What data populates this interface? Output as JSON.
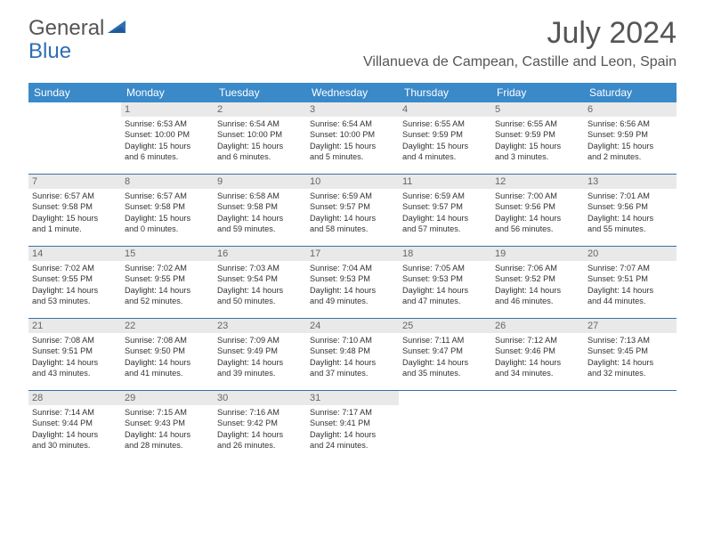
{
  "brand": {
    "part1": "General",
    "part2": "Blue"
  },
  "title": "July 2024",
  "location": "Villanueva de Campean, Castille and Leon, Spain",
  "colors": {
    "header_bg": "#3a89c9",
    "header_text": "#ffffff",
    "daynum_bg": "#e9e9e9",
    "row_border": "#3a6fa5",
    "title_color": "#555555",
    "body_text": "#333333",
    "brand_gray": "#555555",
    "brand_blue": "#2f6fb3"
  },
  "day_names": [
    "Sunday",
    "Monday",
    "Tuesday",
    "Wednesday",
    "Thursday",
    "Friday",
    "Saturday"
  ],
  "weeks": [
    [
      {
        "n": "",
        "sr": "",
        "ss": "",
        "dl1": "",
        "dl2": "",
        "empty": true
      },
      {
        "n": "1",
        "sr": "Sunrise: 6:53 AM",
        "ss": "Sunset: 10:00 PM",
        "dl1": "Daylight: 15 hours",
        "dl2": "and 6 minutes."
      },
      {
        "n": "2",
        "sr": "Sunrise: 6:54 AM",
        "ss": "Sunset: 10:00 PM",
        "dl1": "Daylight: 15 hours",
        "dl2": "and 6 minutes."
      },
      {
        "n": "3",
        "sr": "Sunrise: 6:54 AM",
        "ss": "Sunset: 10:00 PM",
        "dl1": "Daylight: 15 hours",
        "dl2": "and 5 minutes."
      },
      {
        "n": "4",
        "sr": "Sunrise: 6:55 AM",
        "ss": "Sunset: 9:59 PM",
        "dl1": "Daylight: 15 hours",
        "dl2": "and 4 minutes."
      },
      {
        "n": "5",
        "sr": "Sunrise: 6:55 AM",
        "ss": "Sunset: 9:59 PM",
        "dl1": "Daylight: 15 hours",
        "dl2": "and 3 minutes."
      },
      {
        "n": "6",
        "sr": "Sunrise: 6:56 AM",
        "ss": "Sunset: 9:59 PM",
        "dl1": "Daylight: 15 hours",
        "dl2": "and 2 minutes."
      }
    ],
    [
      {
        "n": "7",
        "sr": "Sunrise: 6:57 AM",
        "ss": "Sunset: 9:58 PM",
        "dl1": "Daylight: 15 hours",
        "dl2": "and 1 minute."
      },
      {
        "n": "8",
        "sr": "Sunrise: 6:57 AM",
        "ss": "Sunset: 9:58 PM",
        "dl1": "Daylight: 15 hours",
        "dl2": "and 0 minutes."
      },
      {
        "n": "9",
        "sr": "Sunrise: 6:58 AM",
        "ss": "Sunset: 9:58 PM",
        "dl1": "Daylight: 14 hours",
        "dl2": "and 59 minutes."
      },
      {
        "n": "10",
        "sr": "Sunrise: 6:59 AM",
        "ss": "Sunset: 9:57 PM",
        "dl1": "Daylight: 14 hours",
        "dl2": "and 58 minutes."
      },
      {
        "n": "11",
        "sr": "Sunrise: 6:59 AM",
        "ss": "Sunset: 9:57 PM",
        "dl1": "Daylight: 14 hours",
        "dl2": "and 57 minutes."
      },
      {
        "n": "12",
        "sr": "Sunrise: 7:00 AM",
        "ss": "Sunset: 9:56 PM",
        "dl1": "Daylight: 14 hours",
        "dl2": "and 56 minutes."
      },
      {
        "n": "13",
        "sr": "Sunrise: 7:01 AM",
        "ss": "Sunset: 9:56 PM",
        "dl1": "Daylight: 14 hours",
        "dl2": "and 55 minutes."
      }
    ],
    [
      {
        "n": "14",
        "sr": "Sunrise: 7:02 AM",
        "ss": "Sunset: 9:55 PM",
        "dl1": "Daylight: 14 hours",
        "dl2": "and 53 minutes."
      },
      {
        "n": "15",
        "sr": "Sunrise: 7:02 AM",
        "ss": "Sunset: 9:55 PM",
        "dl1": "Daylight: 14 hours",
        "dl2": "and 52 minutes."
      },
      {
        "n": "16",
        "sr": "Sunrise: 7:03 AM",
        "ss": "Sunset: 9:54 PM",
        "dl1": "Daylight: 14 hours",
        "dl2": "and 50 minutes."
      },
      {
        "n": "17",
        "sr": "Sunrise: 7:04 AM",
        "ss": "Sunset: 9:53 PM",
        "dl1": "Daylight: 14 hours",
        "dl2": "and 49 minutes."
      },
      {
        "n": "18",
        "sr": "Sunrise: 7:05 AM",
        "ss": "Sunset: 9:53 PM",
        "dl1": "Daylight: 14 hours",
        "dl2": "and 47 minutes."
      },
      {
        "n": "19",
        "sr": "Sunrise: 7:06 AM",
        "ss": "Sunset: 9:52 PM",
        "dl1": "Daylight: 14 hours",
        "dl2": "and 46 minutes."
      },
      {
        "n": "20",
        "sr": "Sunrise: 7:07 AM",
        "ss": "Sunset: 9:51 PM",
        "dl1": "Daylight: 14 hours",
        "dl2": "and 44 minutes."
      }
    ],
    [
      {
        "n": "21",
        "sr": "Sunrise: 7:08 AM",
        "ss": "Sunset: 9:51 PM",
        "dl1": "Daylight: 14 hours",
        "dl2": "and 43 minutes."
      },
      {
        "n": "22",
        "sr": "Sunrise: 7:08 AM",
        "ss": "Sunset: 9:50 PM",
        "dl1": "Daylight: 14 hours",
        "dl2": "and 41 minutes."
      },
      {
        "n": "23",
        "sr": "Sunrise: 7:09 AM",
        "ss": "Sunset: 9:49 PM",
        "dl1": "Daylight: 14 hours",
        "dl2": "and 39 minutes."
      },
      {
        "n": "24",
        "sr": "Sunrise: 7:10 AM",
        "ss": "Sunset: 9:48 PM",
        "dl1": "Daylight: 14 hours",
        "dl2": "and 37 minutes."
      },
      {
        "n": "25",
        "sr": "Sunrise: 7:11 AM",
        "ss": "Sunset: 9:47 PM",
        "dl1": "Daylight: 14 hours",
        "dl2": "and 35 minutes."
      },
      {
        "n": "26",
        "sr": "Sunrise: 7:12 AM",
        "ss": "Sunset: 9:46 PM",
        "dl1": "Daylight: 14 hours",
        "dl2": "and 34 minutes."
      },
      {
        "n": "27",
        "sr": "Sunrise: 7:13 AM",
        "ss": "Sunset: 9:45 PM",
        "dl1": "Daylight: 14 hours",
        "dl2": "and 32 minutes."
      }
    ],
    [
      {
        "n": "28",
        "sr": "Sunrise: 7:14 AM",
        "ss": "Sunset: 9:44 PM",
        "dl1": "Daylight: 14 hours",
        "dl2": "and 30 minutes."
      },
      {
        "n": "29",
        "sr": "Sunrise: 7:15 AM",
        "ss": "Sunset: 9:43 PM",
        "dl1": "Daylight: 14 hours",
        "dl2": "and 28 minutes."
      },
      {
        "n": "30",
        "sr": "Sunrise: 7:16 AM",
        "ss": "Sunset: 9:42 PM",
        "dl1": "Daylight: 14 hours",
        "dl2": "and 26 minutes."
      },
      {
        "n": "31",
        "sr": "Sunrise: 7:17 AM",
        "ss": "Sunset: 9:41 PM",
        "dl1": "Daylight: 14 hours",
        "dl2": "and 24 minutes."
      },
      {
        "n": "",
        "sr": "",
        "ss": "",
        "dl1": "",
        "dl2": "",
        "empty": true
      },
      {
        "n": "",
        "sr": "",
        "ss": "",
        "dl1": "",
        "dl2": "",
        "empty": true
      },
      {
        "n": "",
        "sr": "",
        "ss": "",
        "dl1": "",
        "dl2": "",
        "empty": true
      }
    ]
  ]
}
